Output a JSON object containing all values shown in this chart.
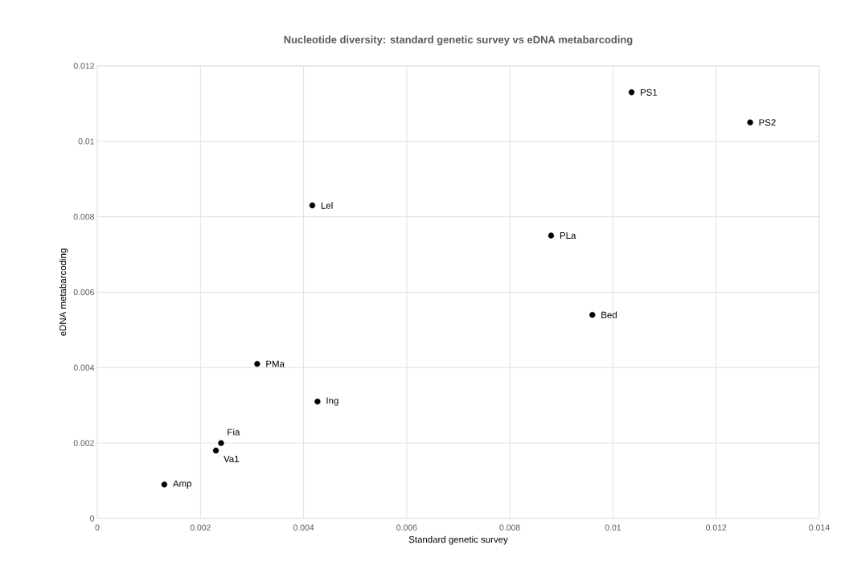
{
  "chart_data": {
    "type": "scatter",
    "title": "Nucleotide diversity: standard genetic survey vs eDNA metabarcoding",
    "xlabel": "Standard genetic survey",
    "ylabel": "eDNA metabarcoding",
    "series": [
      {
        "color": "#000000",
        "x": [
          0.01036,
          0.01266,
          0.00417,
          0.0088,
          0.0096,
          0.0031,
          0.00427,
          0.0024,
          0.0023,
          0.0013
        ],
        "values": [
          0.0113,
          0.0105,
          0.0083,
          0.0075,
          0.0054,
          0.0041,
          0.0031,
          0.002,
          0.0018,
          0.0009
        ]
      }
    ],
    "annotations": [
      {
        "text": "PS1",
        "x": 0.01036,
        "y": 0.0113
      },
      {
        "text": "PS2",
        "x": 0.01266,
        "y": 0.0105
      },
      {
        "text": "Lel",
        "x": 0.00417,
        "y": 0.0083
      },
      {
        "text": "PLa",
        "x": 0.0088,
        "y": 0.0075
      },
      {
        "text": "Bed",
        "x": 0.0096,
        "y": 0.0054
      },
      {
        "text": "PMa",
        "x": 0.0031,
        "y": 0.0041
      },
      {
        "text": "Ing",
        "x": 0.00427,
        "y": 0.0031
      },
      {
        "text": "Fia",
        "x": 0.0024,
        "y": 0.002
      },
      {
        "text": "Va1",
        "x": 0.0023,
        "y": 0.0018
      },
      {
        "text": "Amp",
        "x": 0.0013,
        "y": 0.0009
      }
    ],
    "xlim": [
      0,
      0.014
    ],
    "ylim": [
      0,
      0.012
    ],
    "xticks": [
      0,
      0.002,
      0.004,
      0.006,
      0.008,
      0.01,
      0.012,
      0.014
    ],
    "yticks": [
      0,
      0.002,
      0.004,
      0.006,
      0.008,
      0.01,
      0.012
    ],
    "grid": true,
    "marker": "circle"
  }
}
